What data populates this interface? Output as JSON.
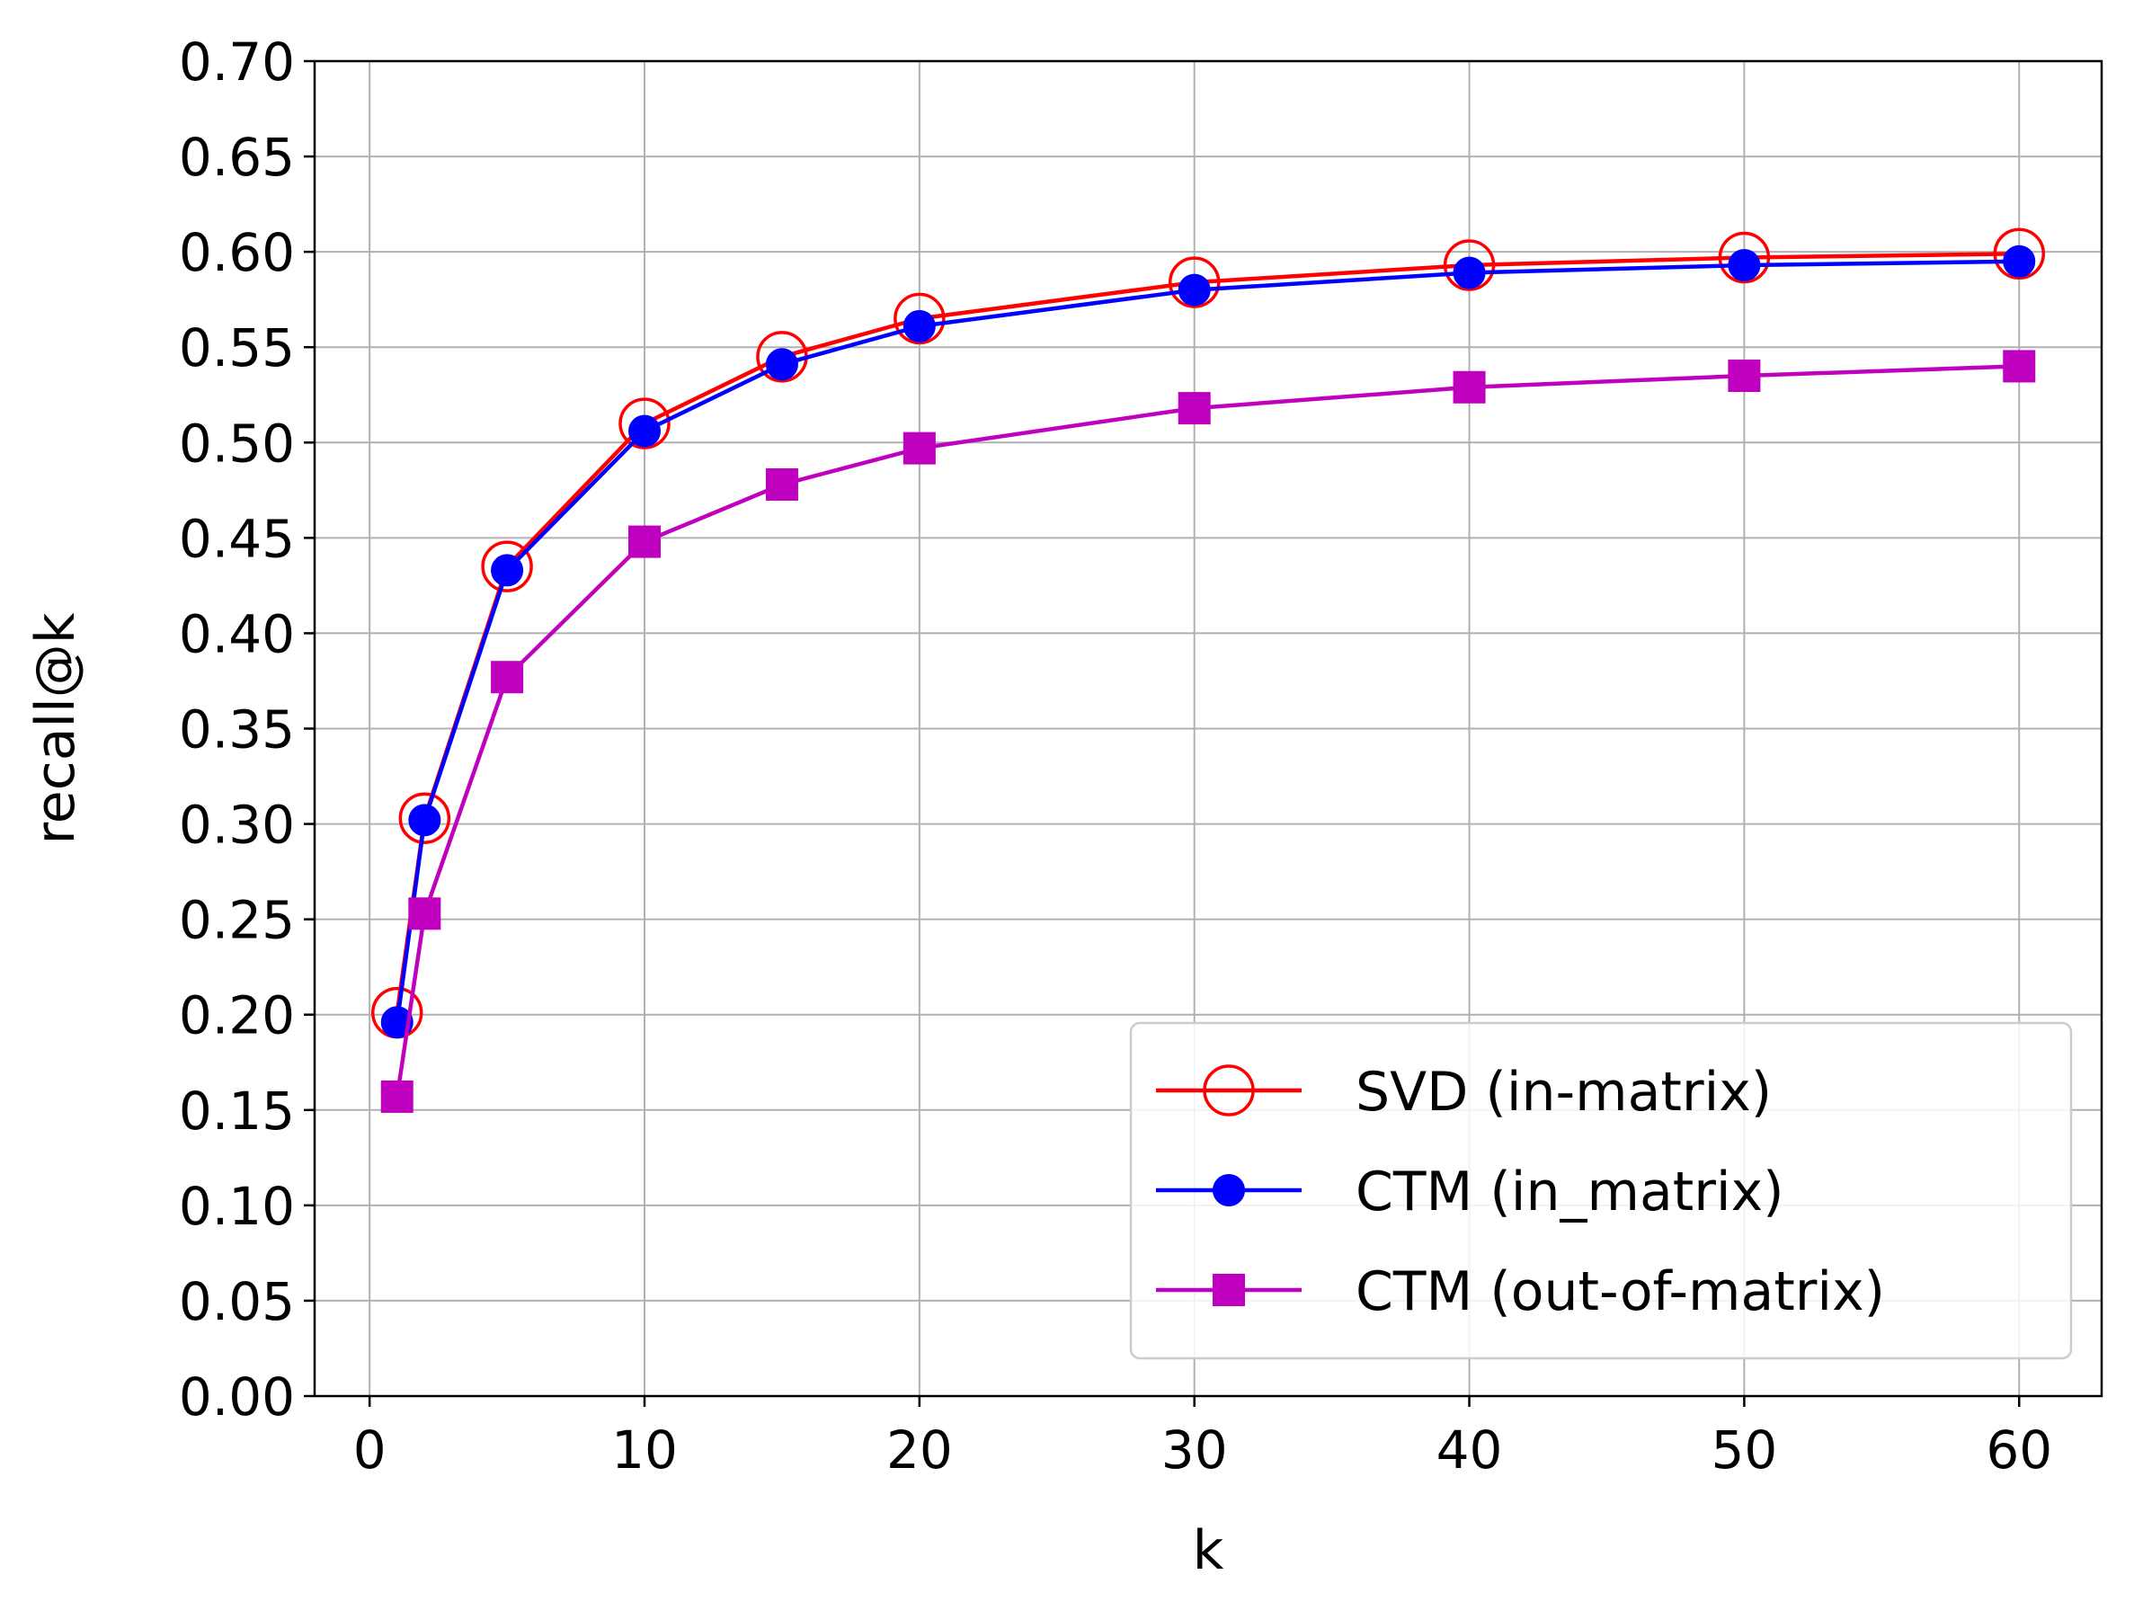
{
  "chart_data": {
    "type": "line",
    "title": "",
    "xlabel": "k",
    "ylabel": "recall@k",
    "xlim": [
      -2,
      63
    ],
    "ylim": [
      0,
      0.7
    ],
    "xticks": [
      "0",
      "10",
      "20",
      "30",
      "40",
      "50",
      "60"
    ],
    "yticks": [
      "0.00",
      "0.05",
      "0.10",
      "0.15",
      "0.20",
      "0.25",
      "0.30",
      "0.35",
      "0.40",
      "0.45",
      "0.50",
      "0.55",
      "0.60",
      "0.65",
      "0.70"
    ],
    "grid": true,
    "legend_position": "lower-right",
    "x": [
      1,
      2,
      5,
      10,
      15,
      20,
      30,
      40,
      50,
      60
    ],
    "series": [
      {
        "name": "SVD (in-matrix)",
        "color": "#ff0000",
        "marker": "open-circle",
        "values": [
          0.201,
          0.303,
          0.435,
          0.51,
          0.545,
          0.565,
          0.584,
          0.593,
          0.597,
          0.599
        ]
      },
      {
        "name": "CTM (in_matrix)",
        "color": "#0000ff",
        "marker": "filled-circle",
        "values": [
          0.196,
          0.302,
          0.433,
          0.506,
          0.541,
          0.561,
          0.58,
          0.589,
          0.593,
          0.595
        ]
      },
      {
        "name": "CTM (out-of-matrix)",
        "color": "#bf00bf",
        "marker": "square",
        "values": [
          0.157,
          0.253,
          0.377,
          0.448,
          0.478,
          0.497,
          0.518,
          0.529,
          0.535,
          0.54
        ]
      }
    ]
  }
}
